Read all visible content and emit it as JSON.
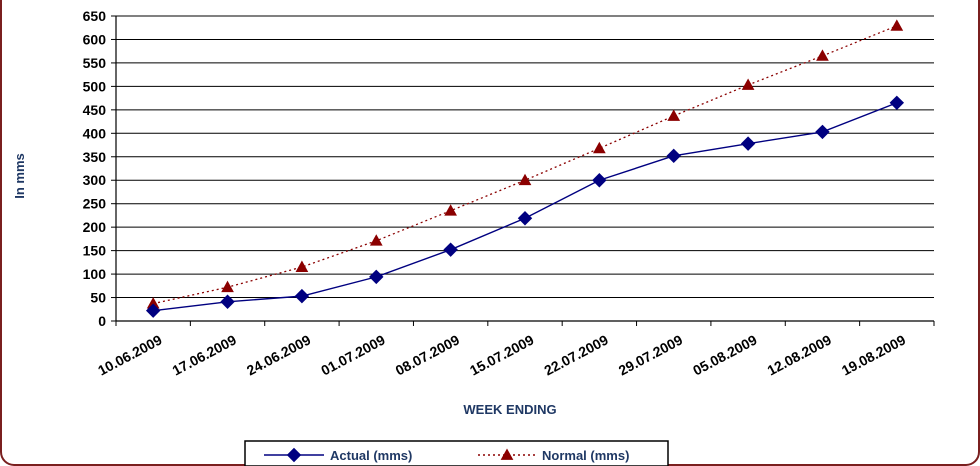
{
  "chart_data": {
    "type": "line",
    "title": "",
    "xlabel": "WEEK ENDING",
    "ylabel": "In mms",
    "ylim": [
      0,
      650
    ],
    "y_ticks": [
      0,
      50,
      100,
      150,
      200,
      250,
      300,
      350,
      400,
      450,
      500,
      550,
      600,
      650
    ],
    "grid": "horizontal",
    "legend_position": "bottom",
    "categories": [
      "10.06.2009",
      "17.06.2009",
      "24.06.2009",
      "01.07.2009",
      "08.07.2009",
      "15.07.2009",
      "22.07.2009",
      "29.07.2009",
      "05.08.2009",
      "12.08.2009",
      "19.08.2009"
    ],
    "series": [
      {
        "name": "Actual (mms)",
        "color": "#000080",
        "line_style": "solid",
        "marker": "diamond",
        "values": [
          22,
          41,
          53,
          94,
          152,
          219,
          300,
          352,
          378,
          403,
          465
        ]
      },
      {
        "name": "Normal (mms)",
        "color": "#8b0000",
        "line_style": "dotted",
        "marker": "triangle",
        "values": [
          37,
          72,
          115,
          171,
          235,
          300,
          368,
          437,
          503,
          565,
          629
        ]
      }
    ]
  }
}
